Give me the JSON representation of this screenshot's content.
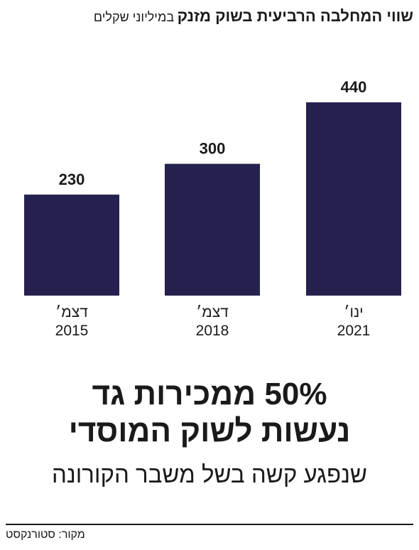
{
  "title": {
    "main": "שווי המחלבה הרביעית בשוק מזנק",
    "unit": "במיליוני שקלים"
  },
  "chart_data": {
    "type": "bar",
    "categories": [
      {
        "month": "דצמ׳",
        "year": "2015"
      },
      {
        "month": "דצמ׳",
        "year": "2018"
      },
      {
        "month": "ינו׳",
        "year": "2021"
      }
    ],
    "values": [
      230,
      300,
      440
    ],
    "value_labels": [
      "230",
      "300",
      "440"
    ],
    "ylim": [
      0,
      440
    ],
    "bar_color": "#25214f",
    "grid": false,
    "legend": "none"
  },
  "headline": {
    "line1": "50% ממכירות גד",
    "line2": "נעשות לשוק המוסדי",
    "line3": "שנפגע קשה בשל משבר הקורונה"
  },
  "source": "מקור: סטורנקסט"
}
